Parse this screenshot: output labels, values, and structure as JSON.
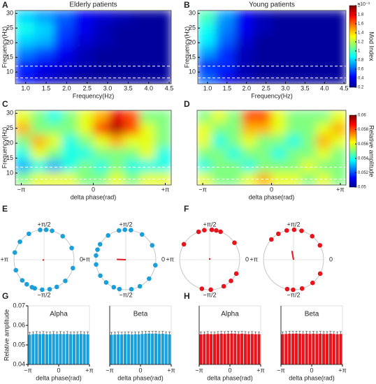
{
  "chart_data": [
    {
      "type": "heatmap",
      "label": "A",
      "title": "Elderly patients",
      "xlabel": "Frequency(Hz)",
      "ylabel": "Frequency(Hz)",
      "xlim": [
        0.75,
        4.55
      ],
      "xticks": [
        {
          "value": 1,
          "label": "1.0"
        },
        1.5,
        {
          "value": 2,
          "label": "2.0"
        },
        2.5,
        {
          "value": 3,
          "label": "3.0"
        },
        3.5,
        {
          "value": 4,
          "label": "4.0"
        },
        4.5
      ],
      "ylim": [
        6,
        31
      ],
      "yticks": [
        10,
        15,
        20,
        25,
        30
      ],
      "dashed_lines": [
        8,
        12
      ],
      "zlim": [
        0.2,
        2
      ],
      "z": [
        [
          0.8,
          0.7,
          0.6,
          0.4,
          0.35,
          0.3,
          0.25,
          0.25
        ],
        [
          0.9,
          0.8,
          0.55,
          0.4,
          0.3,
          0.25,
          0.25,
          0.25
        ],
        [
          0.8,
          0.75,
          0.5,
          0.35,
          0.3,
          0.25,
          0.25,
          0.25
        ],
        [
          0.65,
          0.55,
          0.4,
          0.3,
          0.25,
          0.25,
          0.25,
          0.25
        ],
        [
          0.5,
          0.4,
          0.35,
          0.3,
          0.25,
          0.25,
          0.25,
          0.25
        ],
        [
          0.45,
          0.35,
          0.3,
          0.25,
          0.25,
          0.25,
          0.25,
          0.25
        ]
      ]
    },
    {
      "type": "heatmap",
      "label": "B",
      "title": "Young patients",
      "xlabel": "Frequency(Hz)",
      "ylabel": "Frequency(Hz)",
      "xlim": [
        0.75,
        4.55
      ],
      "xticks": [
        {
          "value": 1,
          "label": "1.0"
        },
        1.5,
        {
          "value": 2,
          "label": "2.0"
        },
        2.5,
        {
          "value": 3,
          "label": "3.0"
        },
        3.5,
        {
          "value": 4,
          "label": "4.0"
        },
        4.5
      ],
      "ylim": [
        6,
        31
      ],
      "yticks": [
        10,
        15,
        20,
        25,
        30
      ],
      "dashed_lines": [
        8,
        12
      ],
      "zlim": [
        0.2,
        2
      ],
      "z": [
        [
          1.0,
          0.7,
          0.4,
          0.3,
          0.25,
          0.25,
          0.25,
          0.25
        ],
        [
          0.9,
          0.65,
          0.4,
          0.3,
          0.25,
          0.25,
          0.25,
          0.25
        ],
        [
          0.85,
          0.6,
          0.35,
          0.25,
          0.25,
          0.25,
          0.25,
          0.25
        ],
        [
          0.7,
          0.5,
          0.3,
          0.25,
          0.25,
          0.25,
          0.25,
          0.25
        ],
        [
          0.5,
          0.5,
          0.3,
          0.25,
          0.25,
          0.25,
          0.25,
          0.25
        ],
        [
          0.6,
          0.4,
          0.3,
          0.25,
          0.25,
          0.25,
          0.25,
          0.25
        ]
      ],
      "colorbar": {
        "label": "Mod Index",
        "exponent": "×10⁻³",
        "ticks": [
          0.2,
          0.4,
          0.6,
          0.8,
          1,
          1.2,
          1.4,
          1.6,
          1.8,
          2
        ]
      }
    },
    {
      "type": "heatmap",
      "label": "C",
      "xlabel": "delta phase(rad)",
      "ylabel": "Frequency(Hz)",
      "xlim": [
        -3.4,
        3.4
      ],
      "xticks": [
        {
          "value": -3.1416,
          "label": "−π"
        },
        0,
        {
          "value": 3.1416,
          "label": "+π"
        }
      ],
      "ylim": [
        6,
        31
      ],
      "yticks": [
        10,
        15,
        20,
        25,
        30
      ],
      "dashed_lines": [
        8,
        12
      ],
      "zlim": [
        0.05,
        0.06
      ],
      "z": [
        [
          0.056,
          0.055,
          0.054,
          0.055,
          0.056,
          0.057,
          0.059,
          0.058,
          0.055,
          0.055
        ],
        [
          0.057,
          0.055,
          0.055,
          0.055,
          0.056,
          0.058,
          0.0595,
          0.058,
          0.056,
          0.055
        ],
        [
          0.055,
          0.057,
          0.056,
          0.054,
          0.055,
          0.056,
          0.057,
          0.056,
          0.056,
          0.055
        ],
        [
          0.054,
          0.056,
          0.055,
          0.054,
          0.054,
          0.055,
          0.055,
          0.055,
          0.056,
          0.054
        ],
        [
          0.053,
          0.054,
          0.053,
          0.054,
          0.055,
          0.054,
          0.055,
          0.054,
          0.054,
          0.054
        ],
        [
          0.055,
          0.056,
          0.056,
          0.056,
          0.055,
          0.055,
          0.056,
          0.055,
          0.056,
          0.056
        ]
      ]
    },
    {
      "type": "heatmap",
      "label": "D",
      "xlabel": "delta phase(rad)",
      "xlim": [
        -3.4,
        3.4
      ],
      "xticks": [
        {
          "value": -3.1416,
          "label": "−π"
        },
        0,
        {
          "value": 3.1416,
          "label": "+π"
        }
      ],
      "ylim": [
        6,
        31
      ],
      "dashed_lines": [
        8,
        12
      ],
      "zlim": [
        0.05,
        0.06
      ],
      "z": [
        [
          0.055,
          0.056,
          0.055,
          0.058,
          0.058,
          0.056,
          0.055,
          0.055,
          0.055,
          0.056
        ],
        [
          0.056,
          0.055,
          0.055,
          0.057,
          0.057,
          0.056,
          0.055,
          0.055,
          0.056,
          0.057
        ],
        [
          0.056,
          0.054,
          0.055,
          0.056,
          0.055,
          0.055,
          0.054,
          0.055,
          0.057,
          0.056
        ],
        [
          0.055,
          0.055,
          0.054,
          0.055,
          0.055,
          0.054,
          0.055,
          0.055,
          0.056,
          0.055
        ],
        [
          0.054,
          0.055,
          0.055,
          0.054,
          0.055,
          0.055,
          0.055,
          0.056,
          0.055,
          0.055
        ],
        [
          0.056,
          0.055,
          0.055,
          0.056,
          0.057,
          0.056,
          0.056,
          0.055,
          0.056,
          0.055
        ]
      ],
      "colorbar": {
        "label": "Relative amplitude",
        "ticks": [
          0.05,
          0.052,
          0.054,
          0.056,
          0.058,
          0.06
        ]
      }
    },
    {
      "type": "polar",
      "label": "E",
      "color": "#1a9fd9",
      "angle_labels": [
        "0",
        "+π/2",
        "+π",
        "−π/2"
      ],
      "angles": [
        1.3,
        1.7,
        2.1,
        2.5,
        2.9,
        3.5,
        3.9,
        4.1,
        4.4,
        4.65,
        4.9,
        5.15,
        5.5,
        6.0,
        0.4,
        0.9,
        1.5,
        4.3
      ],
      "mean_angle": 3.5,
      "mean_length": 0.05
    },
    {
      "type": "polar",
      "color": "#1a9fd9",
      "angle_labels": [
        "0",
        "+π/2",
        "+π",
        "−π/2"
      ],
      "angles": [
        1.4,
        1.8,
        2.2,
        2.6,
        2.8,
        3.3,
        3.7,
        4.0,
        4.3,
        4.5,
        4.9,
        5.2,
        5.6,
        6.1,
        0.5,
        1.0,
        1.6,
        3.0
      ],
      "mean_angle": 3.1,
      "mean_length": 0.3
    },
    {
      "type": "polar",
      "label": "F",
      "color": "#e8141c",
      "angle_labels": [
        "0",
        "+π/2",
        "+π",
        "−π/2"
      ],
      "angles": [
        1.35,
        1.5,
        1.75,
        1.95,
        2.6,
        4.45,
        4.75,
        5.2,
        5.5,
        5.8,
        0.6,
        1.2
      ],
      "mean_angle": 1.6,
      "mean_length": 0.05
    },
    {
      "type": "polar",
      "color": "#e8141c",
      "angle_labels": [
        "0",
        "+π/2",
        "+π",
        "−π/2"
      ],
      "angles": [
        1.3,
        1.55,
        1.8,
        2.1,
        2.4,
        4.5,
        4.7,
        5.0,
        5.4,
        5.8,
        0.5,
        0.9
      ],
      "mean_angle": 1.75,
      "mean_length": 0.3
    },
    {
      "type": "bar",
      "label": "G",
      "title": "Alpha",
      "xlabel": "delta phase(rad)",
      "ylabel": "Relative amplitude",
      "color": "#1a9fd9",
      "xlim": [
        -3.1416,
        3.1416
      ],
      "xticks": [
        {
          "value": -3.1416,
          "label": "−π"
        },
        0,
        {
          "value": 3.1416,
          "label": "+π"
        }
      ],
      "ylim": [
        0.04,
        0.07
      ],
      "yticks": [
        0.04,
        0.05,
        0.06,
        0.07
      ],
      "values": [
        0.0552,
        0.0555,
        0.0556,
        0.0555,
        0.0556,
        0.0554,
        0.0555,
        0.0556,
        0.0555,
        0.0556,
        0.0555,
        0.0556,
        0.0555,
        0.0554,
        0.0555,
        0.0556,
        0.0555,
        0.0554
      ],
      "errors": [
        0.0012,
        0.0012,
        0.0012,
        0.0012,
        0.0012,
        0.0012,
        0.0012,
        0.0012,
        0.0012,
        0.0012,
        0.0012,
        0.0012,
        0.0012,
        0.0012,
        0.0012,
        0.0012,
        0.0012,
        0.0012
      ]
    },
    {
      "type": "bar",
      "title": "Beta",
      "xlabel": "delta phase(rad)",
      "color": "#1a9fd9",
      "xlim": [
        -3.1416,
        3.1416
      ],
      "xticks": [
        {
          "value": -3.1416,
          "label": "−π"
        },
        0,
        {
          "value": 3.1416,
          "label": "+π"
        }
      ],
      "ylim": [
        0.04,
        0.07
      ],
      "values": [
        0.0552,
        0.0553,
        0.0554,
        0.0553,
        0.0555,
        0.0554,
        0.0553,
        0.0555,
        0.0554,
        0.0556,
        0.0557,
        0.0558,
        0.0557,
        0.0558,
        0.0556,
        0.0557,
        0.0555,
        0.0554
      ],
      "errors": [
        0.0012,
        0.0012,
        0.0012,
        0.0012,
        0.0012,
        0.0012,
        0.0012,
        0.0012,
        0.0012,
        0.0012,
        0.0012,
        0.0012,
        0.0012,
        0.0012,
        0.0012,
        0.0012,
        0.0012,
        0.0012
      ]
    },
    {
      "type": "bar",
      "label": "H",
      "title": "Alpha",
      "xlabel": "delta phase(rad)",
      "color": "#e8141c",
      "xlim": [
        -3.1416,
        3.1416
      ],
      "xticks": [
        {
          "value": -3.1416,
          "label": "−π"
        },
        0,
        {
          "value": 3.1416,
          "label": "+π"
        }
      ],
      "ylim": [
        0.04,
        0.07
      ],
      "values": [
        0.0554,
        0.0555,
        0.0556,
        0.0555,
        0.0555,
        0.0556,
        0.0557,
        0.0556,
        0.0557,
        0.0558,
        0.0557,
        0.0556,
        0.0557,
        0.0556,
        0.0555,
        0.0556,
        0.0555,
        0.0555
      ],
      "errors": [
        0.0012,
        0.0012,
        0.0012,
        0.0012,
        0.0012,
        0.0012,
        0.0012,
        0.0012,
        0.0012,
        0.0012,
        0.0012,
        0.0012,
        0.0012,
        0.0012,
        0.0012,
        0.0012,
        0.0012,
        0.0012
      ]
    },
    {
      "type": "bar",
      "title": "Beta",
      "xlabel": "delta phase(rad)",
      "color": "#e8141c",
      "xlim": [
        -3.1416,
        3.1416
      ],
      "xticks": [
        {
          "value": -3.1416,
          "label": "−π"
        },
        0,
        {
          "value": 3.1416,
          "label": "+π"
        }
      ],
      "ylim": [
        0.04,
        0.07
      ],
      "values": [
        0.0555,
        0.0556,
        0.0557,
        0.0557,
        0.0558,
        0.0557,
        0.0556,
        0.0557,
        0.0556,
        0.0557,
        0.0556,
        0.0557,
        0.0556,
        0.0556,
        0.0557,
        0.0556,
        0.0555,
        0.0556
      ],
      "errors": [
        0.0012,
        0.0012,
        0.0012,
        0.0012,
        0.0012,
        0.0012,
        0.0012,
        0.0012,
        0.0012,
        0.0012,
        0.0012,
        0.0012,
        0.0012,
        0.0012,
        0.0012,
        0.0012,
        0.0012,
        0.0012
      ]
    }
  ]
}
